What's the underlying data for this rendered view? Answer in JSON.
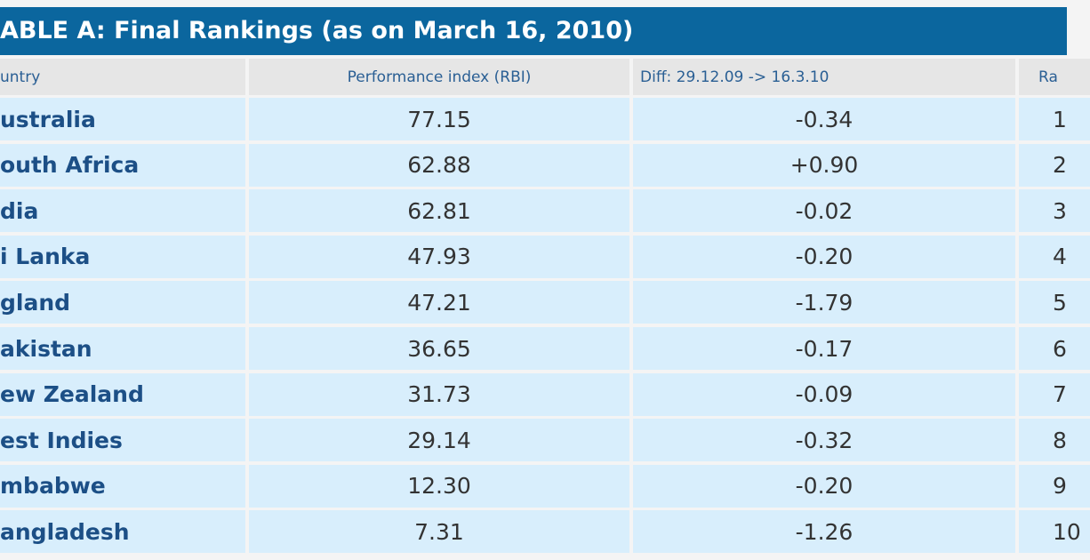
{
  "header": {
    "title": "ABLE A: Final Rankings (as on March 16, 2010)"
  },
  "table": {
    "columns": [
      "untry",
      "Performance index (RBI)",
      "Diff: 29.12.09 -> 16.3.10",
      "Ra"
    ],
    "rows": [
      [
        "ustralia",
        "77.15",
        "-0.34",
        "1"
      ],
      [
        "outh Africa",
        "62.88",
        "+0.90",
        "2"
      ],
      [
        "dia",
        "62.81",
        "-0.02",
        "3"
      ],
      [
        "i Lanka",
        "47.93",
        "-0.20",
        "4"
      ],
      [
        "gland",
        "47.21",
        "-1.79",
        "5"
      ],
      [
        "akistan",
        "36.65",
        "-0.17",
        "6"
      ],
      [
        "ew Zealand",
        "31.73",
        "-0.09",
        "7"
      ],
      [
        "est Indies",
        "29.14",
        "-0.32",
        "8"
      ],
      [
        "mbabwe",
        "12.30",
        "-0.20",
        "9"
      ],
      [
        "angladesh",
        "7.31",
        "-1.26",
        "10"
      ]
    ]
  }
}
